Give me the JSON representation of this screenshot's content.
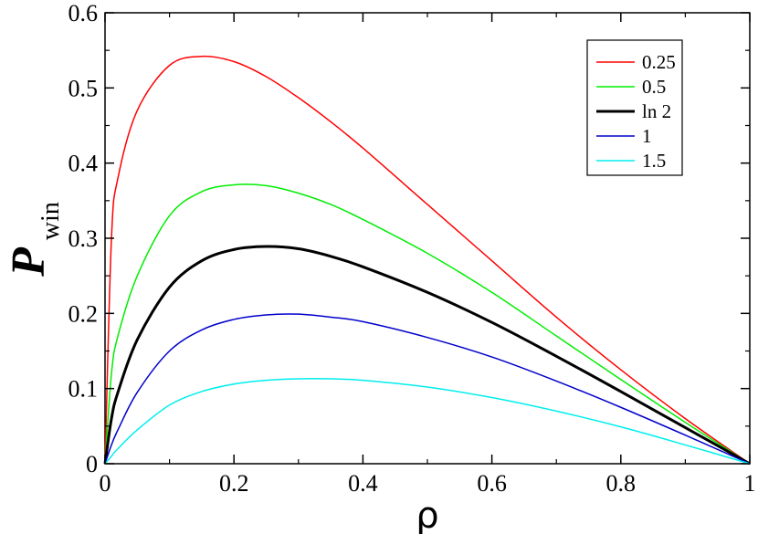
{
  "chart_data": {
    "type": "line",
    "title": "",
    "xlabel": "ρ",
    "ylabel": "P",
    "ylabel_subscript": "win",
    "xlim": [
      0,
      1
    ],
    "ylim": [
      0,
      0.6
    ],
    "xticks": [
      0,
      0.2,
      0.4,
      0.6,
      0.8,
      1
    ],
    "xtick_labels": [
      "0",
      "0.2",
      "0.4",
      "0.6",
      "0.8",
      "1"
    ],
    "yticks": [
      0,
      0.1,
      0.2,
      0.3,
      0.4,
      0.5,
      0.6
    ],
    "ytick_labels": [
      "0",
      "0.1",
      "0.2",
      "0.3",
      "0.4",
      "0.5",
      "0.6"
    ],
    "grid": false,
    "legend_position": "top-right",
    "x": [
      0,
      0.01,
      0.02,
      0.05,
      0.1,
      0.15,
      0.2,
      0.25,
      0.3,
      0.35,
      0.4,
      0.5,
      0.6,
      0.7,
      0.8,
      0.9,
      1.0
    ],
    "series": [
      {
        "name": "0.25",
        "color": "#ff0000",
        "width": 1.5,
        "values": [
          0,
          0.3,
          0.38,
          0.47,
          0.53,
          0.542,
          0.535,
          0.515,
          0.487,
          0.455,
          0.42,
          0.345,
          0.27,
          0.195,
          0.125,
          0.06,
          0
        ]
      },
      {
        "name": "0.5",
        "color": "#00ee00",
        "width": 1.5,
        "values": [
          0,
          0.12,
          0.17,
          0.25,
          0.33,
          0.362,
          0.371,
          0.37,
          0.36,
          0.345,
          0.325,
          0.28,
          0.228,
          0.17,
          0.112,
          0.055,
          0
        ]
      },
      {
        "name": "ln 2",
        "color": "#000000",
        "width": 3,
        "values": [
          0,
          0.06,
          0.095,
          0.165,
          0.235,
          0.27,
          0.285,
          0.289,
          0.286,
          0.276,
          0.262,
          0.228,
          0.188,
          0.143,
          0.096,
          0.048,
          0
        ]
      },
      {
        "name": "1",
        "color": "#0000cc",
        "width": 1.5,
        "values": [
          0,
          0.025,
          0.045,
          0.095,
          0.15,
          0.178,
          0.192,
          0.198,
          0.199,
          0.195,
          0.189,
          0.168,
          0.142,
          0.11,
          0.075,
          0.038,
          0
        ]
      },
      {
        "name": "1.5",
        "color": "#00eeee",
        "width": 1.5,
        "values": [
          0,
          0.01,
          0.02,
          0.045,
          0.078,
          0.096,
          0.106,
          0.111,
          0.113,
          0.113,
          0.111,
          0.102,
          0.088,
          0.07,
          0.049,
          0.025,
          0
        ]
      }
    ]
  }
}
